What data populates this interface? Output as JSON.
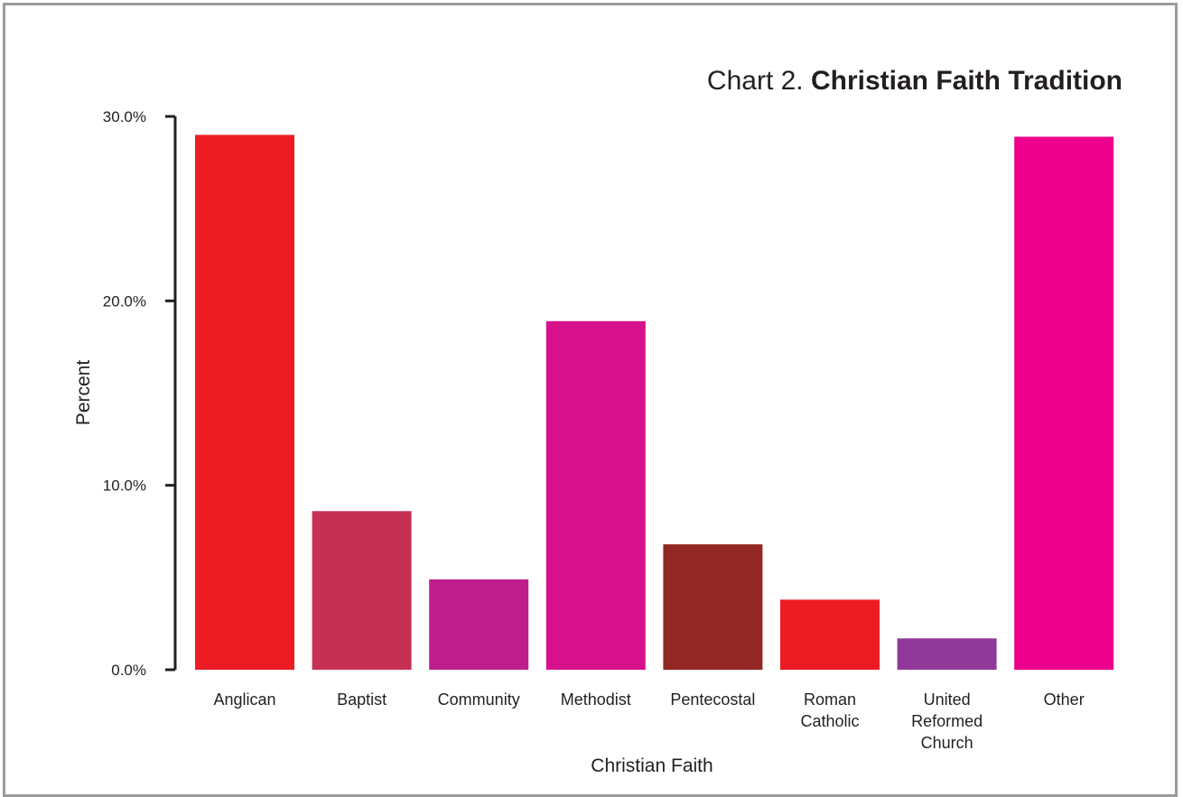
{
  "chart_data": {
    "type": "bar",
    "title_prefix": "Chart 2.",
    "title_bold": "Christian Faith Tradition",
    "xlabel": "Christian Faith",
    "ylabel": "Percent",
    "ylim": [
      0,
      30
    ],
    "yticks": [
      "0.0%",
      "10.0%",
      "20.0%",
      "30.0%"
    ],
    "grid": false,
    "categories": [
      [
        "Anglican"
      ],
      [
        "Baptist"
      ],
      [
        "Community"
      ],
      [
        "Methodist"
      ],
      [
        "Pentecostal"
      ],
      [
        "Roman",
        "Catholic"
      ],
      [
        "United",
        "Reformed",
        "Church"
      ],
      [
        "Other"
      ]
    ],
    "values": [
      29.0,
      8.6,
      4.9,
      18.9,
      6.8,
      3.8,
      1.7,
      28.9
    ],
    "colors": [
      "#ed1c24",
      "#c63055",
      "#be1e8c",
      "#d7118c",
      "#922724",
      "#ed1c24",
      "#91399a",
      "#ec008c"
    ]
  }
}
